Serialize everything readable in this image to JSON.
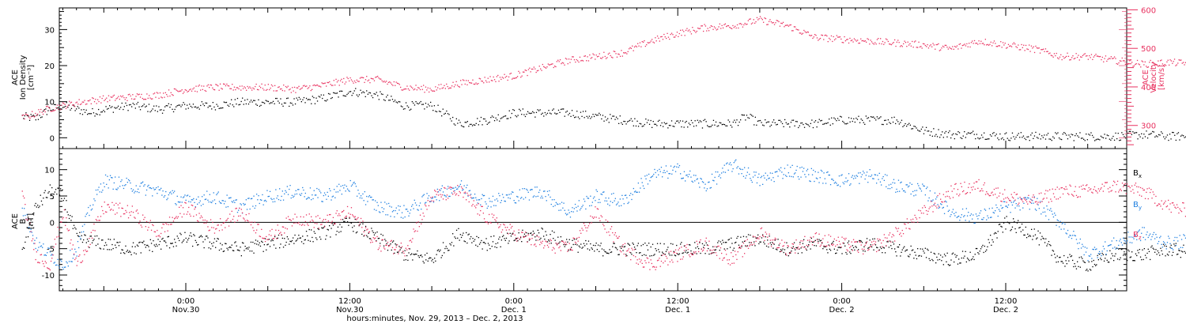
{
  "chart_data": [
    {
      "type": "scatter",
      "panel": "plasma",
      "ylabel": [
        "ACE",
        "Ion Density",
        "[cm⁻³]"
      ],
      "ylabel_right": [
        "ACE",
        "Velocity",
        "[km/s]"
      ],
      "ylim": [
        -3,
        36
      ],
      "ylim_right": [
        240,
        605
      ],
      "yticks": [
        0,
        10,
        20,
        30
      ],
      "yticks_right": [
        300,
        400,
        500,
        600
      ],
      "colors": {
        "density": "#000000",
        "velocity": "#e8315f"
      },
      "x_hours_since": "Nov. 29, 2013 12:00",
      "series": [
        {
          "key": "density",
          "axis": "left",
          "color": "#000000",
          "x": [
            0,
            1,
            2,
            3,
            4,
            5,
            6,
            8,
            10,
            12,
            14,
            16,
            18,
            20,
            22,
            24,
            26,
            28,
            30,
            32,
            34,
            36,
            38,
            40,
            42,
            44,
            46,
            48,
            50,
            52,
            53,
            54,
            56,
            58,
            60,
            62,
            64,
            66,
            68,
            70,
            72,
            74,
            76,
            78,
            80,
            82,
            84,
            86,
            88,
            90,
            92,
            94,
            96,
            97,
            98,
            99,
            100,
            101
          ],
          "y": [
            6,
            5.5,
            8,
            9,
            8,
            7,
            8,
            9,
            8,
            9,
            9,
            10,
            10,
            10,
            11,
            13,
            12,
            9,
            9,
            4,
            5,
            7,
            7,
            7,
            6,
            5,
            4,
            4,
            4,
            4,
            6,
            4,
            4,
            4,
            5,
            5,
            5,
            2,
            1,
            1,
            0.5,
            0.5,
            0.5,
            0.5,
            0.5,
            1,
            0.5,
            0.5,
            0.5,
            0.5,
            0.5,
            0.5,
            0.5,
            0.5,
            0.5,
            0.5,
            0.5,
            0.5
          ]
        },
        {
          "key": "velocity",
          "axis": "right",
          "color": "#e8315f",
          "x": [
            0,
            2,
            4,
            6,
            8,
            10,
            12,
            14,
            16,
            18,
            20,
            22,
            24,
            26,
            28,
            30,
            32,
            34,
            36,
            38,
            40,
            42,
            44,
            46,
            48,
            50,
            52,
            54,
            56,
            57,
            58,
            60,
            62,
            64,
            66,
            68,
            70,
            72,
            74,
            75,
            76,
            78,
            80,
            82,
            84,
            86,
            88,
            90,
            92,
            94,
            96,
            98,
            100,
            101
          ],
          "y": [
            320,
            345,
            360,
            370,
            375,
            380,
            395,
            400,
            400,
            400,
            395,
            405,
            420,
            420,
            400,
            395,
            410,
            420,
            430,
            450,
            470,
            480,
            490,
            520,
            540,
            555,
            560,
            575,
            560,
            545,
            530,
            525,
            520,
            515,
            510,
            500,
            520,
            510,
            500,
            490,
            480,
            480,
            470,
            460,
            465,
            460,
            455,
            450,
            440,
            435,
            430,
            425,
            415,
            410
          ]
        }
      ]
    },
    {
      "type": "scatter",
      "panel": "magnetic",
      "ylabel": [
        "ACE",
        "B",
        "[nT]"
      ],
      "ylim": [
        -13,
        14
      ],
      "yticks": [
        -10,
        -5,
        0,
        5,
        10
      ],
      "zero_line": true,
      "legend_position": "right",
      "series": [
        {
          "key": "bx",
          "name": "B",
          "name_sub": "x",
          "color": "#000000",
          "x": [
            0,
            1,
            2,
            3,
            4,
            6,
            8,
            10,
            12,
            14,
            16,
            18,
            20,
            22,
            24,
            26,
            28,
            30,
            32,
            34,
            36,
            38,
            40,
            42,
            44,
            46,
            48,
            50,
            52,
            54,
            56,
            58,
            60,
            62,
            64,
            66,
            68,
            70,
            72,
            74,
            76,
            78,
            80,
            82,
            84,
            86,
            88,
            90,
            92,
            94,
            96,
            98,
            100,
            101
          ],
          "y": [
            -5,
            3,
            6,
            5,
            -3,
            -4,
            -5,
            -4,
            -3,
            -4,
            -5,
            -4,
            -3,
            -2,
            0,
            -3,
            -6,
            -7,
            -2,
            -4,
            -3,
            -2,
            -4,
            -5,
            -5,
            -5,
            -5,
            -5,
            -4,
            -3,
            -5,
            -4,
            -5,
            -4,
            -5,
            -6,
            -7,
            -6,
            0,
            -2,
            -7,
            -8,
            -6,
            -6,
            -5,
            -6,
            -4,
            -3,
            -6,
            -7,
            -8,
            -9,
            -9,
            -9.5
          ]
        },
        {
          "key": "by",
          "name": "B",
          "name_sub": "y",
          "color": "#1e7fe0",
          "x": [
            0,
            1,
            2,
            3,
            4,
            5,
            6,
            8,
            10,
            12,
            14,
            16,
            18,
            20,
            22,
            24,
            26,
            28,
            30,
            32,
            34,
            36,
            38,
            40,
            42,
            44,
            46,
            48,
            50,
            52,
            54,
            56,
            58,
            60,
            62,
            64,
            66,
            68,
            70,
            72,
            74,
            76,
            78,
            80,
            82,
            84,
            86,
            88,
            90,
            92,
            94,
            96,
            98,
            100,
            101
          ],
          "y": [
            3,
            -4,
            -6,
            -8,
            -5,
            3,
            8,
            7,
            6,
            4,
            5,
            3,
            5,
            6,
            5,
            7,
            3,
            2,
            5,
            7,
            4,
            5,
            6,
            2,
            5,
            4,
            9,
            10,
            7,
            11,
            8,
            10,
            9,
            8,
            9,
            7,
            6,
            2,
            1,
            3,
            4,
            0,
            -6,
            -4,
            -2,
            -4,
            -3,
            -2,
            2,
            3,
            4,
            5,
            4,
            3,
            2.5
          ]
        },
        {
          "key": "bz",
          "name": "B",
          "name_sub": "z",
          "color": "#e8315f",
          "x": [
            0,
            1,
            2,
            3,
            4,
            5,
            6,
            8,
            10,
            12,
            14,
            16,
            18,
            20,
            22,
            24,
            26,
            28,
            30,
            32,
            34,
            36,
            38,
            40,
            42,
            44,
            46,
            48,
            50,
            52,
            54,
            56,
            58,
            60,
            62,
            64,
            66,
            68,
            70,
            72,
            74,
            76,
            78,
            80,
            82,
            84,
            86,
            88,
            90,
            92,
            94,
            96,
            98,
            100,
            101
          ],
          "y": [
            5,
            -6,
            -8,
            2,
            -8,
            -3,
            3,
            2,
            -2,
            3,
            -1,
            2,
            -3,
            1,
            0,
            2,
            -4,
            -5,
            5,
            6,
            1,
            -2,
            -4,
            -5,
            2,
            -5,
            -8,
            -6,
            -4,
            -7,
            -2,
            -5,
            -3,
            -4,
            -5,
            -2,
            2,
            6,
            7,
            5,
            4,
            6,
            6,
            7,
            6,
            3,
            2,
            4,
            3,
            4,
            -2,
            -3,
            -3,
            -1,
            0
          ]
        }
      ]
    }
  ],
  "x_axis": {
    "ticks": [
      {
        "hour": 12,
        "time": "0:00",
        "date": "Nov.30"
      },
      {
        "hour": 24,
        "time": "12:00",
        "date": "Nov.30"
      },
      {
        "hour": 36,
        "time": "0:00",
        "date": "Dec. 1"
      },
      {
        "hour": 48,
        "time": "12:00",
        "date": "Dec. 1"
      },
      {
        "hour": 60,
        "time": "0:00",
        "date": "Dec. 2"
      },
      {
        "hour": 72,
        "time": "12:00",
        "date": "Dec. 2"
      }
    ],
    "label": "hours:minutes, Nov. 29, 2013 – Dec. 2, 2013"
  }
}
